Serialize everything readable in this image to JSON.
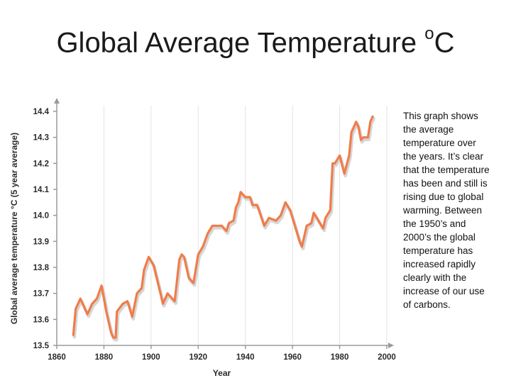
{
  "slide": {
    "title": "Global Average Temperature ",
    "title_sup": "o",
    "title_tail": "C",
    "caption": "This graph shows the average temperature over the years. It’s clear that the temperature has been and still is rising due to global warming. Between the 1950’s and 2000’s the global temperature has increased rapidly clearly with the increase of our use of carbons."
  },
  "chart_data": {
    "type": "line",
    "title": "",
    "xlabel": "Year",
    "ylabel": "Global average temperature  °C (5 year average)",
    "xlim": [
      1860,
      2000
    ],
    "ylim": [
      13.5,
      14.4
    ],
    "x_ticks": [
      "1860",
      "1880",
      "1900",
      "1920",
      "1940",
      "1960",
      "1980",
      "2000"
    ],
    "y_ticks": [
      "13.5",
      "13.6",
      "13.7",
      "13.8",
      "13.9",
      "14.0",
      "14.1",
      "14.2",
      "14.3",
      "14.4"
    ],
    "grid": "vertical",
    "colors": {
      "line": "#f07c4a",
      "shadow": "#d6d6d6",
      "grid": "#e3e3e3",
      "axis": "#9a9a9a"
    },
    "series": [
      {
        "x": [
          1867,
          1868,
          1870,
          1873,
          1875,
          1877,
          1879,
          1881,
          1883,
          1884,
          1885,
          1885.5,
          1888,
          1890,
          1892,
          1894,
          1895,
          1896,
          1897,
          1899,
          1901,
          1904,
          1905,
          1907,
          1908,
          1910,
          1912,
          1913,
          1914,
          1916,
          1918,
          1920,
          1922,
          1924,
          1926,
          1928,
          1930,
          1932,
          1933,
          1935,
          1936,
          1937,
          1938,
          1940,
          1941,
          1942,
          1943,
          1944,
          1945,
          1948,
          1950,
          1953,
          1955,
          1957,
          1959,
          1961,
          1963,
          1964,
          1966,
          1968,
          1969,
          1971,
          1973,
          1974,
          1976,
          1977,
          1978,
          1980,
          1982,
          1984,
          1985,
          1986,
          1987,
          1988,
          1989,
          1990,
          1992,
          1993,
          1994
        ],
        "y": [
          13.54,
          13.64,
          13.68,
          13.62,
          13.66,
          13.68,
          13.73,
          13.63,
          13.55,
          13.53,
          13.53,
          13.63,
          13.66,
          13.67,
          13.61,
          13.7,
          13.71,
          13.72,
          13.79,
          13.84,
          13.81,
          13.7,
          13.66,
          13.7,
          13.69,
          13.67,
          13.83,
          13.85,
          13.84,
          13.76,
          13.74,
          13.85,
          13.88,
          13.93,
          13.96,
          13.96,
          13.96,
          13.94,
          13.97,
          13.98,
          14.03,
          14.05,
          14.09,
          14.07,
          14.07,
          14.07,
          14.04,
          14.04,
          14.04,
          13.96,
          13.99,
          13.98,
          14.0,
          14.05,
          14.02,
          13.96,
          13.9,
          13.88,
          13.96,
          13.97,
          14.01,
          13.98,
          13.95,
          13.99,
          14.02,
          14.2,
          14.2,
          14.23,
          14.16,
          14.23,
          14.32,
          14.34,
          14.36,
          14.34,
          14.29,
          14.3,
          14.3,
          14.36,
          14.38
        ]
      }
    ]
  }
}
